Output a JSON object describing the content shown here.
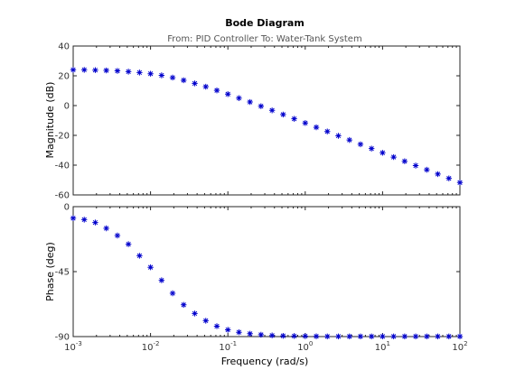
{
  "chart_data": {
    "type": "scatter",
    "title": "Bode Diagram",
    "subtitle": "From: PID Controller  To: Water-Tank System",
    "xlabel": "Frequency  (rad/s)",
    "x_scale": "log",
    "xlim": [
      0.001,
      100
    ],
    "x_ticks": [
      {
        "value": 0.001,
        "base": "10",
        "exp": "-3"
      },
      {
        "value": 0.01,
        "base": "10",
        "exp": "-2"
      },
      {
        "value": 0.1,
        "base": "10",
        "exp": "-1"
      },
      {
        "value": 1,
        "base": "10",
        "exp": "0"
      },
      {
        "value": 10,
        "base": "10",
        "exp": "1"
      },
      {
        "value": 100,
        "base": "10",
        "exp": "2"
      }
    ],
    "marker": "*",
    "marker_color": "#0000cc",
    "grid": false,
    "x": [
      0.001,
      0.00139,
      0.00193,
      0.00268,
      0.00373,
      0.00518,
      0.0072,
      0.01,
      0.0139,
      0.0193,
      0.0268,
      0.0373,
      0.0518,
      0.072,
      0.1,
      0.139,
      0.193,
      0.268,
      0.373,
      0.518,
      0.72,
      1,
      1.39,
      1.93,
      2.68,
      3.73,
      5.18,
      7.2,
      10,
      13.9,
      19.3,
      26.8,
      37.3,
      51.8,
      72,
      100
    ],
    "panels": [
      {
        "ylabel": "Magnitude (dB)",
        "ylim": [
          -60,
          40
        ],
        "y_ticks": [
          "40",
          "20",
          "0",
          "-20",
          "-40",
          "-60"
        ],
        "y_tick_values": [
          40,
          20,
          0,
          -20,
          -40,
          -60
        ],
        "values": [
          24,
          24,
          23.8,
          23.6,
          23.3,
          22.8,
          22.2,
          21.4,
          20.3,
          18.8,
          17,
          14.9,
          12.7,
          10.2,
          7.7,
          5,
          2.4,
          -0.4,
          -3.2,
          -6,
          -8.9,
          -11.7,
          -14.6,
          -17.4,
          -20.3,
          -23.1,
          -26,
          -28.9,
          -31.7,
          -34.6,
          -37.4,
          -40.3,
          -43.1,
          -46,
          -48.9,
          -51.7
        ]
      },
      {
        "ylabel": "Phase (deg)",
        "ylim": [
          -90,
          0
        ],
        "y_ticks": [
          "0",
          "-45",
          "-90"
        ],
        "y_tick_values": [
          0,
          -45,
          -90
        ],
        "values": [
          -8,
          -9,
          -11,
          -15,
          -20,
          -26,
          -34,
          -42,
          -51,
          -60,
          -68,
          -74,
          -79,
          -82.8,
          -85.3,
          -87,
          -88,
          -88.7,
          -89.2,
          -89.5,
          -89.6,
          -89.7,
          -89.8,
          -89.9,
          -89.9,
          -89.9,
          -89.9,
          -89.9,
          -89.9,
          -89.9,
          -89.9,
          -89.9,
          -89.9,
          -89.9,
          -89.9,
          -89.9
        ]
      }
    ]
  }
}
